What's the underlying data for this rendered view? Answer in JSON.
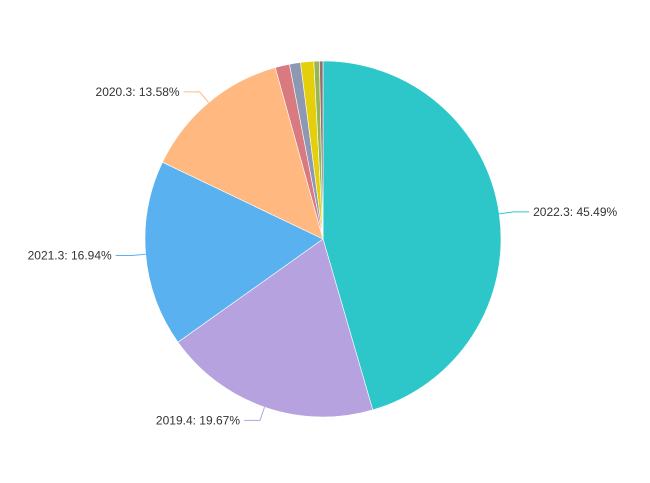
{
  "chart_data": {
    "type": "pie",
    "title": "",
    "label_format": "{name}: {percent}%",
    "slices": [
      {
        "name": "2022.3",
        "percent": 45.49,
        "color": "#2ec7c9",
        "show_label": true,
        "label_text": "2022.3: 45.49%"
      },
      {
        "name": "2019.4",
        "percent": 19.67,
        "color": "#b6a2de",
        "show_label": true,
        "label_text": "2019.4: 19.67%"
      },
      {
        "name": "2021.3",
        "percent": 16.94,
        "color": "#5ab1ef",
        "show_label": true,
        "label_text": "2021.3: 16.94%"
      },
      {
        "name": "2020.3",
        "percent": 13.58,
        "color": "#ffb980",
        "show_label": true,
        "label_text": "2020.3: 13.58%"
      },
      {
        "percent": 1.3,
        "color": "#d87a80",
        "show_label": false
      },
      {
        "percent": 1.0,
        "color": "#8d98b3",
        "show_label": false
      },
      {
        "percent": 1.2,
        "color": "#e5cf0d",
        "show_label": false
      },
      {
        "percent": 0.5,
        "color": "#97b552",
        "show_label": false
      },
      {
        "percent": 0.32,
        "color": "#95706d",
        "show_label": false
      }
    ],
    "start_angle_deg": 90,
    "direction": "clockwise"
  }
}
